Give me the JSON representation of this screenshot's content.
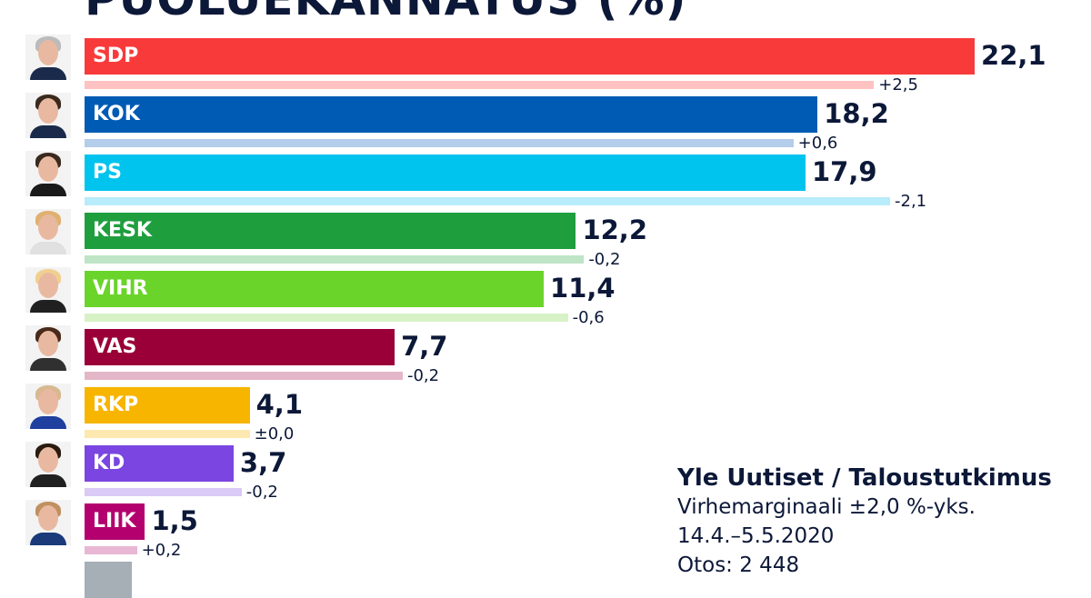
{
  "chart_data": {
    "type": "bar",
    "orientation": "horizontal",
    "title": "PUOLUEKANNATUS (%)",
    "categories": [
      "SDP",
      "KOK",
      "PS",
      "KESK",
      "VIHR",
      "VAS",
      "RKP",
      "KD",
      "LIIK"
    ],
    "values": [
      22.1,
      18.2,
      17.9,
      12.2,
      11.4,
      7.7,
      4.1,
      3.7,
      1.5
    ],
    "value_labels": [
      "22,1",
      "18,2",
      "17,9",
      "12,2",
      "11,4",
      "7,7",
      "4,1",
      "3,7",
      "1,5"
    ],
    "changes": [
      2.5,
      0.6,
      -2.1,
      -0.2,
      -0.6,
      -0.2,
      0.0,
      -0.2,
      0.2
    ],
    "change_labels": [
      "+2,5",
      "+0,6",
      "-2,1",
      "-0,2",
      "-0,6",
      "-0,2",
      "±0,0",
      "-0,2",
      "+0,2"
    ],
    "colors": [
      "#f93a3a",
      "#005bb5",
      "#00c3ee",
      "#1f9e3e",
      "#6ad42a",
      "#9a0037",
      "#f7b500",
      "#7a45e0",
      "#b3006e"
    ],
    "prev_colors": [
      "#ffc2c2",
      "#b3cdea",
      "#b8ecfa",
      "#bfe4c6",
      "#d6f2c6",
      "#e3b6c8",
      "#fde9b0",
      "#d9caf6",
      "#e8b7d3"
    ],
    "hair_colors": [
      "#bbbbbb",
      "#3a2a1e",
      "#3a2a1e",
      "#e0b070",
      "#f0d090",
      "#4a2a1a",
      "#d8b890",
      "#2a1a10",
      "#c09060"
    ],
    "suit_colors": [
      "#1a2a4a",
      "#1a2a4a",
      "#1a1a1a",
      "#e0e0e0",
      "#202020",
      "#303030",
      "#2040a0",
      "#202020",
      "#1a3a7a"
    ],
    "extra_bar_color": "#a6aeb6",
    "xlim": [
      0,
      25
    ],
    "grid": false,
    "legend": "none"
  },
  "source": {
    "name": "Yle Uutiset / Taloustutkimus",
    "margin": "Virhemarginaali ±2,0 %-yks.",
    "dates": "14.4.–5.5.2020",
    "sample": "Otos: 2 448"
  }
}
